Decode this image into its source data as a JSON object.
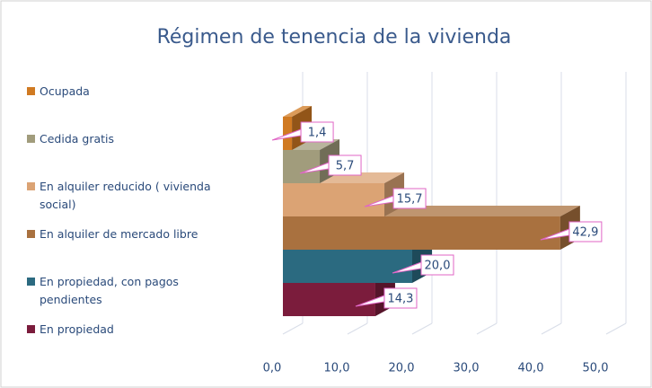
{
  "chart_data": {
    "type": "bar3d",
    "orientation": "horizontal",
    "title": "Régimen de tenencia de la vivienda",
    "categories": [
      "Ocupada",
      "Cedida gratis",
      "En alquiler reducido ( vivienda social)",
      "En alquiler de mercado libre",
      "En propiedad, con pagos pendientes",
      "En propiedad"
    ],
    "values": [
      1.4,
      5.7,
      15.7,
      42.9,
      20.0,
      14.3
    ],
    "value_labels": [
      "1,4",
      "5,7",
      "15,7",
      "42,9",
      "20,0",
      "14,3"
    ],
    "colors": [
      "#d07a22",
      "#a19c7c",
      "#dba374",
      "#a9713f",
      "#2b6a80",
      "#7b1c3c"
    ],
    "xlim": [
      0,
      50
    ],
    "xticks": [
      {
        "value": 0,
        "label": "0,0"
      },
      {
        "value": 10,
        "label": "10,0"
      },
      {
        "value": 20,
        "label": "20,0"
      },
      {
        "value": 30,
        "label": "30,0"
      },
      {
        "value": 40,
        "label": "40,0"
      },
      {
        "value": 50,
        "label": "50,0"
      }
    ],
    "grid": true,
    "legend": "left"
  }
}
